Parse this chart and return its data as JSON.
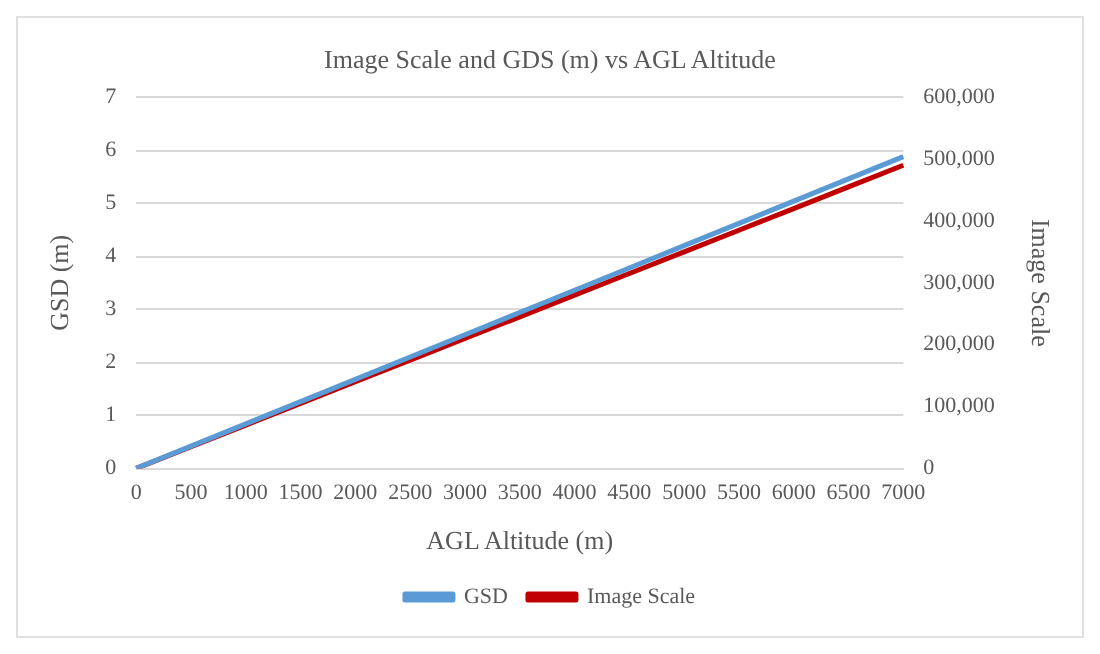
{
  "chart_data": {
    "type": "line",
    "title": "Image Scale and GDS (m) vs AGL Altitude",
    "xlabel": "AGL Altitude (m)",
    "ylabel": "GSD (m)",
    "y2label": "Image Scale",
    "categories": [
      "0",
      "500",
      "1000",
      "1500",
      "2000",
      "2500",
      "3000",
      "3500",
      "4000",
      "4500",
      "5000",
      "5500",
      "6000",
      "6500",
      "7000"
    ],
    "series": [
      {
        "name": "GSD",
        "color": "#5b9bd5",
        "values": [
          0,
          0.42,
          0.84,
          1.26,
          1.68,
          2.1,
          2.52,
          2.94,
          3.36,
          3.78,
          4.2,
          4.62,
          5.04,
          5.46,
          5.88
        ]
      },
      {
        "name": "Image Scale",
        "color": "#c00000",
        "axis": "y2",
        "values": [
          0,
          35000,
          70000,
          105000,
          140000,
          175000,
          210000,
          245000,
          280000,
          315000,
          350000,
          385000,
          420000,
          455000,
          490000
        ]
      }
    ],
    "ylim": [
      0,
      7
    ],
    "yticks": [
      0,
      1,
      2,
      3,
      4,
      5,
      6,
      7
    ],
    "y2lim": [
      0,
      600000
    ],
    "y2ticks": [
      {
        "value": 0,
        "label": "0"
      },
      {
        "value": 100000,
        "label": "100,000"
      },
      {
        "value": 200000,
        "label": "200,000"
      },
      {
        "value": 300000,
        "label": "300,000"
      },
      {
        "value": 400000,
        "label": "400,000"
      },
      {
        "value": 500000,
        "label": "500,000"
      },
      {
        "value": 600000,
        "label": "600,000"
      }
    ],
    "grid": "y",
    "legend": "bottom",
    "marker": "none",
    "line_style": "solid"
  }
}
